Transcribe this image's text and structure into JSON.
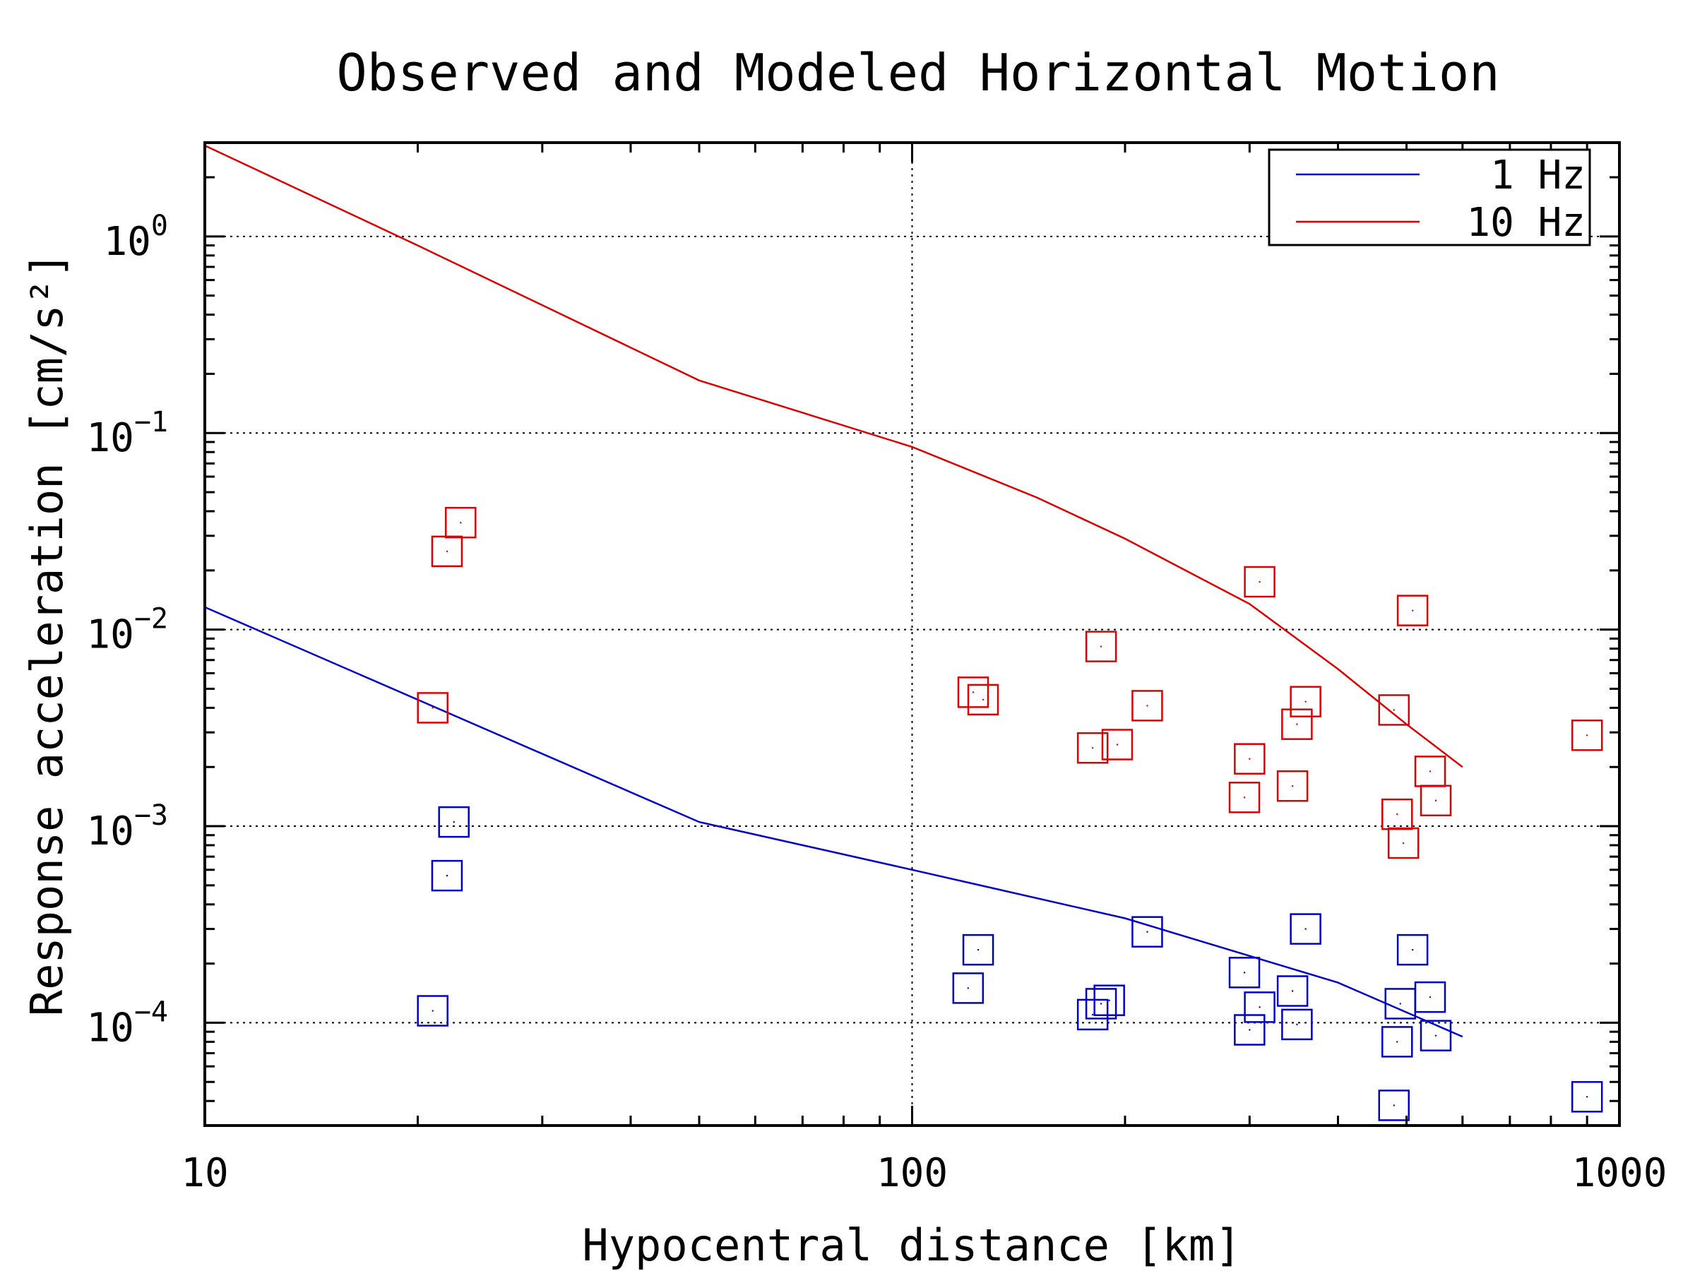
{
  "chart_data": {
    "type": "scatter",
    "title": "Observed and Modeled Horizontal Motion",
    "xlabel": "Hypocentral distance [km]",
    "ylabel": "Response acceleration [cm/s²]",
    "x_scale": "log",
    "y_scale": "log",
    "xlim": [
      10,
      1000
    ],
    "ylim": [
      3e-05,
      3
    ],
    "x_ticks": [
      {
        "value": 10,
        "label": "10"
      },
      {
        "value": 100,
        "label": "100"
      },
      {
        "value": 1000,
        "label": "1000"
      }
    ],
    "y_ticks": [
      {
        "value": 1,
        "base": "10",
        "exp": "0"
      },
      {
        "value": 0.1,
        "base": "10",
        "exp": "−1"
      },
      {
        "value": 0.01,
        "base": "10",
        "exp": "−2"
      },
      {
        "value": 0.001,
        "base": "10",
        "exp": "−3"
      },
      {
        "value": 0.0001,
        "base": "10",
        "exp": "−4"
      }
    ],
    "grid": true,
    "legend": {
      "placement": "top-right",
      "entries": [
        {
          "label": "1 Hz",
          "color": "#0000c8"
        },
        {
          "label": "10 Hz",
          "color": "#dc0000"
        }
      ]
    },
    "series": [
      {
        "name": "1 Hz",
        "color": "#0000c8",
        "model": [
          [
            10,
            0.013
          ],
          [
            50,
            0.00105
          ],
          [
            100,
            0.0006
          ],
          [
            200,
            0.00034
          ],
          [
            400,
            0.00016
          ],
          [
            600,
            8.5e-05
          ]
        ],
        "observed": [
          [
            21,
            0.000115
          ],
          [
            22,
            0.00056
          ],
          [
            22.5,
            0.00105
          ],
          [
            120,
            0.00015
          ],
          [
            124,
            0.000235
          ],
          [
            180,
            0.00011
          ],
          [
            185,
            0.000125
          ],
          [
            190,
            0.00013
          ],
          [
            215,
            0.00029
          ],
          [
            295,
            0.00018
          ],
          [
            300,
            9.2e-05
          ],
          [
            310,
            0.00012
          ],
          [
            345,
            0.000145
          ],
          [
            350,
            9.8e-05
          ],
          [
            360,
            0.0003
          ],
          [
            480,
            3.8e-05
          ],
          [
            485,
            8e-05
          ],
          [
            490,
            0.000125
          ],
          [
            510,
            0.000235
          ],
          [
            540,
            0.000135
          ],
          [
            550,
            8.6e-05
          ],
          [
            900,
            4.2e-05
          ]
        ]
      },
      {
        "name": "10 Hz",
        "color": "#dc0000",
        "model": [
          [
            10,
            2.9
          ],
          [
            20,
            0.9
          ],
          [
            50,
            0.185
          ],
          [
            100,
            0.085
          ],
          [
            150,
            0.047
          ],
          [
            200,
            0.029
          ],
          [
            300,
            0.0135
          ],
          [
            400,
            0.0063
          ],
          [
            500,
            0.0033
          ],
          [
            600,
            0.002
          ]
        ],
        "observed": [
          [
            21,
            0.004
          ],
          [
            22,
            0.025
          ],
          [
            23,
            0.035
          ],
          [
            122,
            0.0048
          ],
          [
            126,
            0.0044
          ],
          [
            180,
            0.0025
          ],
          [
            185,
            0.0082
          ],
          [
            195,
            0.0026
          ],
          [
            215,
            0.0041
          ],
          [
            295,
            0.0014
          ],
          [
            300,
            0.0022
          ],
          [
            310,
            0.0175
          ],
          [
            345,
            0.0016
          ],
          [
            350,
            0.0033
          ],
          [
            360,
            0.0043
          ],
          [
            480,
            0.0039
          ],
          [
            485,
            0.00115
          ],
          [
            495,
            0.00082
          ],
          [
            510,
            0.0125
          ],
          [
            540,
            0.0019
          ],
          [
            550,
            0.00135
          ],
          [
            900,
            0.0029
          ]
        ]
      }
    ]
  }
}
